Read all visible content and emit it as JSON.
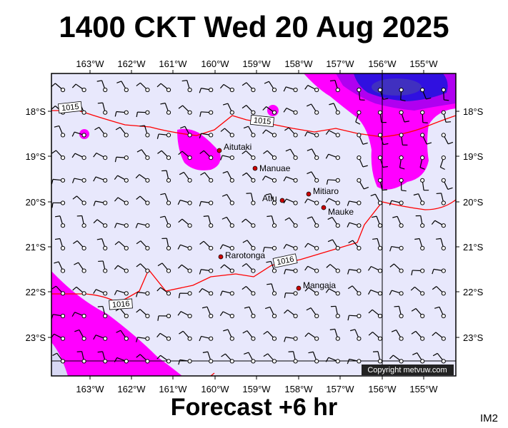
{
  "title": "1400 CKT Wed 20 Aug 2025",
  "subtitle": "Forecast +6 hr",
  "image_id": "IM2",
  "copyright": "Copyright metvuw.com",
  "axes": {
    "lon_ticks": [
      "163°W",
      "162°W",
      "161°W",
      "160°W",
      "159°W",
      "158°W",
      "157°W",
      "156°W",
      "155°W"
    ],
    "lat_ticks": [
      "18°S",
      "19°S",
      "20°S",
      "21°S",
      "22°S",
      "23°S"
    ]
  },
  "isobars": [
    {
      "label": "1015"
    },
    {
      "label": "1015"
    },
    {
      "label": "1016"
    },
    {
      "label": "1016"
    }
  ],
  "places": [
    {
      "name": "Aitutaki"
    },
    {
      "name": "Manuae"
    },
    {
      "name": "Atiu"
    },
    {
      "name": "Mitiaro"
    },
    {
      "name": "Mauke"
    },
    {
      "name": "Rarotonga"
    },
    {
      "name": "Mangaia"
    }
  ],
  "colors": {
    "sea": "#e8e8fc",
    "rain_light": "#ff00ff",
    "rain_mid": "#b000f0",
    "rain_heavy": "#3010e0",
    "isobar": "#ff0000",
    "place_dot": "#cc0000"
  }
}
